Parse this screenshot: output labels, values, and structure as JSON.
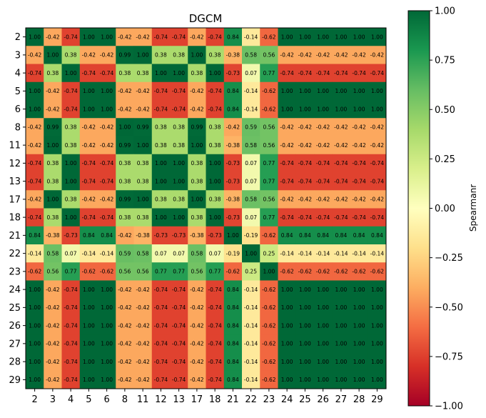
{
  "chart_data": {
    "type": "heatmap",
    "title": "DGCM",
    "xlabel": "",
    "ylabel": "",
    "labels": [
      "2",
      "3",
      "4",
      "5",
      "6",
      "8",
      "11",
      "12",
      "13",
      "17",
      "18",
      "21",
      "22",
      "23",
      "24",
      "25",
      "26",
      "27",
      "28",
      "29"
    ],
    "values": [
      [
        1.0,
        -0.42,
        -0.74,
        1.0,
        1.0,
        -0.42,
        -0.42,
        -0.74,
        -0.74,
        -0.42,
        -0.74,
        0.84,
        -0.14,
        -0.62,
        1.0,
        1.0,
        1.0,
        1.0,
        1.0,
        1.0
      ],
      [
        -0.42,
        1.0,
        0.38,
        -0.42,
        -0.42,
        0.99,
        1.0,
        0.38,
        0.38,
        1.0,
        0.38,
        -0.38,
        0.58,
        0.56,
        -0.42,
        -0.42,
        -0.42,
        -0.42,
        -0.42,
        -0.42
      ],
      [
        -0.74,
        0.38,
        1.0,
        -0.74,
        -0.74,
        0.38,
        0.38,
        1.0,
        1.0,
        0.38,
        1.0,
        -0.73,
        0.07,
        0.77,
        -0.74,
        -0.74,
        -0.74,
        -0.74,
        -0.74,
        -0.74
      ],
      [
        1.0,
        -0.42,
        -0.74,
        1.0,
        1.0,
        -0.42,
        -0.42,
        -0.74,
        -0.74,
        -0.42,
        -0.74,
        0.84,
        -0.14,
        -0.62,
        1.0,
        1.0,
        1.0,
        1.0,
        1.0,
        1.0
      ],
      [
        1.0,
        -0.42,
        -0.74,
        1.0,
        1.0,
        -0.42,
        -0.42,
        -0.74,
        -0.74,
        -0.42,
        -0.74,
        0.84,
        -0.14,
        -0.62,
        1.0,
        1.0,
        1.0,
        1.0,
        1.0,
        1.0
      ],
      [
        -0.42,
        0.99,
        0.38,
        -0.42,
        -0.42,
        1.0,
        0.99,
        0.38,
        0.38,
        0.99,
        0.38,
        -0.42,
        0.59,
        0.56,
        -0.42,
        -0.42,
        -0.42,
        -0.42,
        -0.42,
        -0.42
      ],
      [
        -0.42,
        1.0,
        0.38,
        -0.42,
        -0.42,
        0.99,
        1.0,
        0.38,
        0.38,
        1.0,
        0.38,
        -0.38,
        0.58,
        0.56,
        -0.42,
        -0.42,
        -0.42,
        -0.42,
        -0.42,
        -0.42
      ],
      [
        -0.74,
        0.38,
        1.0,
        -0.74,
        -0.74,
        0.38,
        0.38,
        1.0,
        1.0,
        0.38,
        1.0,
        -0.73,
        0.07,
        0.77,
        -0.74,
        -0.74,
        -0.74,
        -0.74,
        -0.74,
        -0.74
      ],
      [
        -0.74,
        0.38,
        1.0,
        -0.74,
        -0.74,
        0.38,
        0.38,
        1.0,
        1.0,
        0.38,
        1.0,
        -0.73,
        0.07,
        0.77,
        -0.74,
        -0.74,
        -0.74,
        -0.74,
        -0.74,
        -0.74
      ],
      [
        -0.42,
        1.0,
        0.38,
        -0.42,
        -0.42,
        0.99,
        1.0,
        0.38,
        0.38,
        1.0,
        0.38,
        -0.38,
        0.58,
        0.56,
        -0.42,
        -0.42,
        -0.42,
        -0.42,
        -0.42,
        -0.42
      ],
      [
        -0.74,
        0.38,
        1.0,
        -0.74,
        -0.74,
        0.38,
        0.38,
        1.0,
        1.0,
        0.38,
        1.0,
        -0.73,
        0.07,
        0.77,
        -0.74,
        -0.74,
        -0.74,
        -0.74,
        -0.74,
        -0.74
      ],
      [
        0.84,
        -0.38,
        -0.73,
        0.84,
        0.84,
        -0.42,
        -0.38,
        -0.73,
        -0.73,
        -0.38,
        -0.73,
        1.0,
        -0.19,
        -0.62,
        0.84,
        0.84,
        0.84,
        0.84,
        0.84,
        0.84
      ],
      [
        -0.14,
        0.58,
        0.07,
        -0.14,
        -0.14,
        0.59,
        0.58,
        0.07,
        0.07,
        0.58,
        0.07,
        -0.19,
        1.0,
        0.25,
        -0.14,
        -0.14,
        -0.14,
        -0.14,
        -0.14,
        -0.14
      ],
      [
        -0.62,
        0.56,
        0.77,
        -0.62,
        -0.62,
        0.56,
        0.56,
        0.77,
        0.77,
        0.56,
        0.77,
        -0.62,
        0.25,
        1.0,
        -0.62,
        -0.62,
        -0.62,
        -0.62,
        -0.62,
        -0.62
      ],
      [
        1.0,
        -0.42,
        -0.74,
        1.0,
        1.0,
        -0.42,
        -0.42,
        -0.74,
        -0.74,
        -0.42,
        -0.74,
        0.84,
        -0.14,
        -0.62,
        1.0,
        1.0,
        1.0,
        1.0,
        1.0,
        1.0
      ],
      [
        1.0,
        -0.42,
        -0.74,
        1.0,
        1.0,
        -0.42,
        -0.42,
        -0.74,
        -0.74,
        -0.42,
        -0.74,
        0.84,
        -0.14,
        -0.62,
        1.0,
        1.0,
        1.0,
        1.0,
        1.0,
        1.0
      ],
      [
        1.0,
        -0.42,
        -0.74,
        1.0,
        1.0,
        -0.42,
        -0.42,
        -0.74,
        -0.74,
        -0.42,
        -0.74,
        0.84,
        -0.14,
        -0.62,
        1.0,
        1.0,
        1.0,
        1.0,
        1.0,
        1.0
      ],
      [
        1.0,
        -0.42,
        -0.74,
        1.0,
        1.0,
        -0.42,
        -0.42,
        -0.74,
        -0.74,
        -0.42,
        -0.74,
        0.84,
        -0.14,
        -0.62,
        1.0,
        1.0,
        1.0,
        1.0,
        1.0,
        1.0
      ],
      [
        1.0,
        -0.42,
        -0.74,
        1.0,
        1.0,
        -0.42,
        -0.42,
        -0.74,
        -0.74,
        -0.42,
        -0.74,
        0.84,
        -0.14,
        -0.62,
        1.0,
        1.0,
        1.0,
        1.0,
        1.0,
        1.0
      ],
      [
        1.0,
        -0.42,
        -0.74,
        1.0,
        1.0,
        -0.42,
        -0.42,
        -0.74,
        -0.74,
        -0.42,
        -0.74,
        0.84,
        -0.14,
        -0.62,
        1.0,
        1.0,
        1.0,
        1.0,
        1.0,
        1.0
      ]
    ],
    "value_range": [
      -1.0,
      1.0
    ],
    "colormap": "RdYlGn",
    "colorbar": {
      "label": "Spearmanr",
      "ticks": [
        "1.00",
        "0.75",
        "0.50",
        "0.25",
        "0.00",
        "−0.25",
        "−0.50",
        "−0.75",
        "−1.00"
      ],
      "tick_values": [
        1.0,
        0.75,
        0.5,
        0.25,
        0.0,
        -0.25,
        -0.5,
        -0.75,
        -1.0
      ]
    },
    "grid": false,
    "legend": "colorbar-right"
  }
}
